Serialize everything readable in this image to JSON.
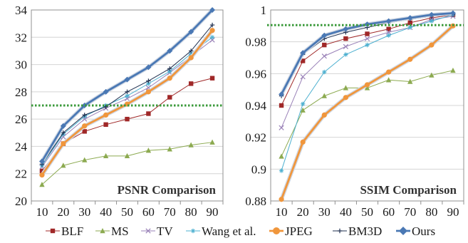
{
  "chart_data": [
    {
      "type": "line",
      "title": "PSNR Comparison",
      "x": [
        10,
        20,
        30,
        40,
        50,
        60,
        70,
        80,
        90
      ],
      "ylim": [
        20,
        34
      ],
      "yticks": [
        20,
        22,
        24,
        26,
        28,
        30,
        32,
        34
      ],
      "grid": true,
      "reference_line": 27.0,
      "series": [
        {
          "name": "BLF",
          "values": [
            22.2,
            24.2,
            25.1,
            25.6,
            26.0,
            26.4,
            27.6,
            28.6,
            29.0
          ]
        },
        {
          "name": "MS",
          "values": [
            21.2,
            22.6,
            23.0,
            23.3,
            23.3,
            23.7,
            23.8,
            24.1,
            24.3
          ]
        },
        {
          "name": "TV",
          "values": [
            22.5,
            24.7,
            26.0,
            26.8,
            27.5,
            28.3,
            29.4,
            30.6,
            31.8
          ]
        },
        {
          "name": "Wang et al.",
          "values": [
            22.6,
            24.9,
            26.2,
            27.0,
            27.7,
            28.6,
            29.5,
            30.8,
            32.0
          ]
        },
        {
          "name": "JPEG",
          "values": [
            21.9,
            24.2,
            25.5,
            26.3,
            27.1,
            28.0,
            29.0,
            30.5,
            32.5
          ]
        },
        {
          "name": "BM3D",
          "values": [
            22.7,
            25.0,
            26.3,
            26.9,
            28.0,
            28.8,
            29.7,
            31.0,
            32.9
          ]
        },
        {
          "name": "Ours",
          "values": [
            22.9,
            25.5,
            27.0,
            28.0,
            28.9,
            29.8,
            31.0,
            32.4,
            34.0
          ]
        }
      ]
    },
    {
      "type": "line",
      "title": "SSIM Comparison",
      "x": [
        10,
        20,
        30,
        40,
        50,
        60,
        70,
        80,
        90
      ],
      "ylim": [
        0.88,
        1
      ],
      "yticks": [
        0.88,
        0.9,
        0.92,
        0.94,
        0.96,
        0.98,
        1
      ],
      "grid": true,
      "reference_line": 0.9905,
      "series": [
        {
          "name": "BLF",
          "values": [
            0.94,
            0.968,
            0.978,
            0.982,
            0.985,
            0.988,
            0.992,
            0.995,
            0.997
          ]
        },
        {
          "name": "MS",
          "values": [
            0.908,
            0.937,
            0.946,
            0.951,
            0.951,
            0.956,
            0.955,
            0.959,
            0.962
          ]
        },
        {
          "name": "TV",
          "values": [
            0.926,
            0.958,
            0.971,
            0.977,
            0.982,
            0.986,
            0.989,
            0.994,
            0.996
          ]
        },
        {
          "name": "Wang et al.",
          "values": [
            0.899,
            0.941,
            0.961,
            0.972,
            0.978,
            0.984,
            0.989,
            0.993,
            0.997
          ]
        },
        {
          "name": "JPEG",
          "values": [
            0.881,
            0.917,
            0.934,
            0.945,
            0.953,
            0.961,
            0.969,
            0.978,
            0.99
          ]
        },
        {
          "name": "BM3D",
          "values": [
            0.946,
            0.972,
            0.982,
            0.986,
            0.989,
            0.992,
            0.994,
            0.996,
            0.997
          ]
        },
        {
          "name": "Ours",
          "values": [
            0.947,
            0.973,
            0.984,
            0.988,
            0.991,
            0.993,
            0.995,
            0.997,
            0.998
          ]
        }
      ]
    }
  ],
  "legend": [
    {
      "name": "BLF",
      "color": "#a02828",
      "marker": "square"
    },
    {
      "name": "MS",
      "color": "#8caa50",
      "marker": "triangle"
    },
    {
      "name": "TV",
      "color": "#9a82b8",
      "marker": "x"
    },
    {
      "name": "Wang et al.",
      "color": "#4db0d0",
      "marker": "star"
    },
    {
      "name": "JPEG",
      "color": "#f0963c",
      "marker": "circle"
    },
    {
      "name": "BM3D",
      "color": "#1f2f4f",
      "marker": "plus"
    },
    {
      "name": "Ours",
      "color": "#4a78b4",
      "marker": "diamond"
    }
  ],
  "reference_line_color": "#3a9a3a"
}
